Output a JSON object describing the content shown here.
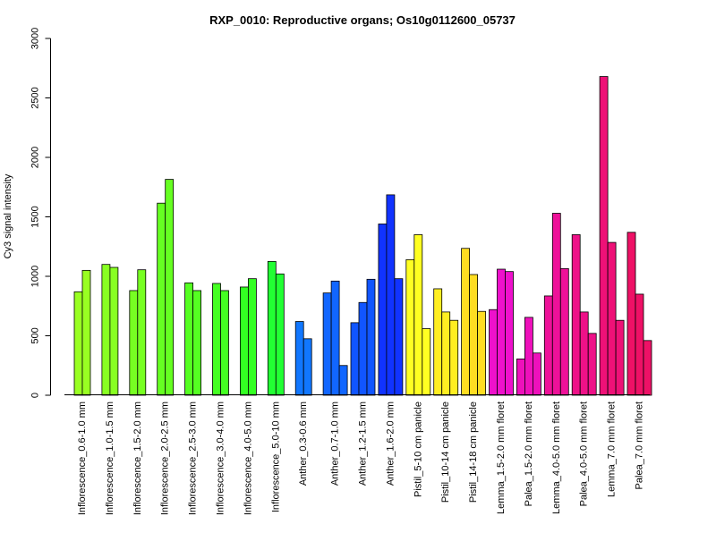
{
  "chart_data": {
    "type": "bar",
    "title": "RXP_0010: Reproductive organs; Os10g0112600_05737",
    "ylabel": "Cy3 signal intensity",
    "xlabel": "",
    "ylim": [
      0,
      3000
    ],
    "yticks": [
      0,
      500,
      1000,
      1500,
      2000,
      2500,
      3000
    ],
    "grid": false,
    "groups": [
      {
        "label": "Inflorescence_0.6-1.0 mm",
        "color": "#99ff22",
        "values": [
          870,
          1050
        ]
      },
      {
        "label": "Inflorescence_1.0-1.5 mm",
        "color": "#88ff22",
        "values": [
          1100,
          1075
        ]
      },
      {
        "label": "Inflorescence_1.5-2.0 mm",
        "color": "#77ff22",
        "values": [
          880,
          1055
        ]
      },
      {
        "label": "Inflorescence_2.0-2.5 mm",
        "color": "#66ff22",
        "values": [
          1615,
          1815
        ]
      },
      {
        "label": "Inflorescence_2.5-3.0 mm",
        "color": "#55ff22",
        "values": [
          945,
          880
        ]
      },
      {
        "label": "Inflorescence_3.0-4.0 mm",
        "color": "#44ff22",
        "values": [
          940,
          880
        ]
      },
      {
        "label": "Inflorescence_4.0-5.0 mm",
        "color": "#33ff22",
        "values": [
          910,
          980
        ]
      },
      {
        "label": "Inflorescence_5.0-10 mm",
        "color": "#22ff33",
        "values": [
          1125,
          1020
        ]
      },
      {
        "label": "Anther_0.3-0.6 mm",
        "color": "#1177ff",
        "values": [
          620,
          475
        ]
      },
      {
        "label": "Anther_0.7-1.0 mm",
        "color": "#1166ff",
        "values": [
          860,
          960,
          250
        ]
      },
      {
        "label": "Anther_1.2-1.5 mm",
        "color": "#1155ff",
        "values": [
          610,
          780,
          975
        ]
      },
      {
        "label": "Anther_1.6-2.0 mm",
        "color": "#1133ff",
        "values": [
          1440,
          1685,
          980
        ]
      },
      {
        "label": "Pistil_5-10 cm panicle",
        "color": "#ffff22",
        "values": [
          1140,
          1350,
          560
        ]
      },
      {
        "label": "Pistil_10-14 cm panicle",
        "color": "#ffee22",
        "values": [
          895,
          700,
          630
        ]
      },
      {
        "label": "Pistil_14-18 cm panicle",
        "color": "#ffdd22",
        "values": [
          1235,
          1015,
          705
        ]
      },
      {
        "label": "Lemma_1.5-2.0 mm floret",
        "color": "#ee11cc",
        "values": [
          720,
          1060,
          1040
        ]
      },
      {
        "label": "Palea_1.5-2.0 mm floret",
        "color": "#ee11bb",
        "values": [
          305,
          655,
          355
        ]
      },
      {
        "label": "Lemma_4.0-5.0 mm floret",
        "color": "#ee1199",
        "values": [
          835,
          1530,
          1065
        ]
      },
      {
        "label": "Palea_4.0-5.0 mm floret",
        "color": "#ee1188",
        "values": [
          1350,
          700,
          520
        ]
      },
      {
        "label": "Lemma_7.0 mm floret",
        "color": "#ee1177",
        "values": [
          2680,
          1285,
          630
        ]
      },
      {
        "label": "Palea_7.0 mm floret",
        "color": "#ee1166",
        "values": [
          1370,
          850,
          460
        ]
      }
    ]
  }
}
